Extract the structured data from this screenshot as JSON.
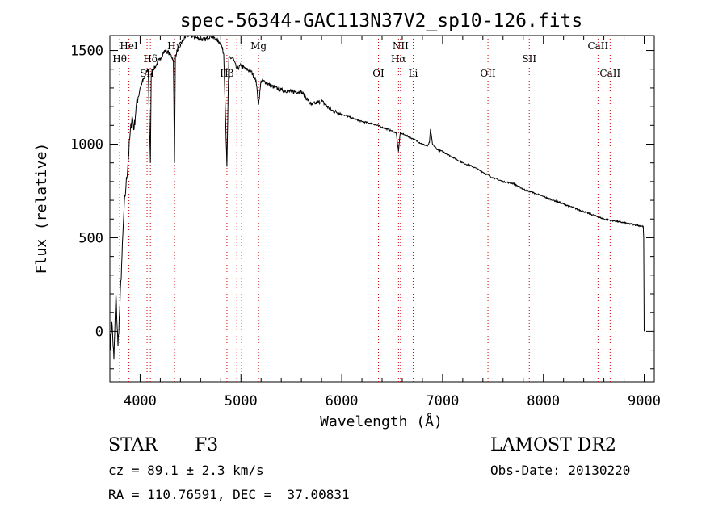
{
  "chart_data": {
    "type": "line",
    "title": "spec-56344-GAC113N37V2_sp10-126.fits",
    "xlabel": "Wavelength (Å)",
    "ylabel": "Flux (relative)",
    "xlim": [
      3700,
      9100
    ],
    "ylim": [
      -270,
      1580
    ],
    "xticks": [
      4000,
      5000,
      6000,
      7000,
      8000,
      9000
    ],
    "yticks": [
      0,
      500,
      1000,
      1500
    ],
    "grid": false,
    "series": [
      {
        "x": [
          3700,
          3720,
          3740,
          3760,
          3780,
          3800,
          3820,
          3840,
          3860,
          3880,
          3900,
          3920,
          3940,
          3960,
          3980,
          4000,
          4020,
          4040,
          4060,
          4080,
          4102,
          4110,
          4130,
          4160,
          4200,
          4250,
          4300,
          4330,
          4341,
          4350,
          4380,
          4420,
          4460,
          4500,
          4550,
          4600,
          4650,
          4700,
          4750,
          4800,
          4830,
          4861,
          4880,
          4920,
          4960,
          5000,
          5050,
          5100,
          5150,
          5175,
          5200,
          5250,
          5300,
          5400,
          5500,
          5600,
          5700,
          5800,
          5900,
          6000,
          6100,
          6200,
          6300,
          6400,
          6500,
          6540,
          6563,
          6580,
          6620,
          6700,
          6800,
          6850,
          6870,
          6880,
          6900,
          6950,
          7000,
          7100,
          7200,
          7300,
          7400,
          7500,
          7600,
          7700,
          7800,
          7900,
          8000,
          8100,
          8200,
          8300,
          8400,
          8500,
          8600,
          8700,
          8800,
          8900,
          8990,
          8995,
          9000
        ],
        "y": [
          -100,
          50,
          -150,
          200,
          -80,
          150,
          400,
          650,
          780,
          900,
          1050,
          1150,
          1080,
          1200,
          1250,
          1300,
          1330,
          1350,
          1380,
          1400,
          900,
          1380,
          1400,
          1420,
          1460,
          1500,
          1480,
          1450,
          900,
          1470,
          1520,
          1550,
          1580,
          1580,
          1570,
          1560,
          1560,
          1580,
          1560,
          1540,
          1480,
          880,
          1460,
          1460,
          1400,
          1420,
          1400,
          1390,
          1340,
          1210,
          1340,
          1330,
          1310,
          1290,
          1280,
          1280,
          1210,
          1230,
          1180,
          1160,
          1140,
          1120,
          1110,
          1090,
          1070,
          1060,
          960,
          1060,
          1050,
          1030,
          1000,
          990,
          1010,
          1080,
          1000,
          970,
          960,
          930,
          900,
          880,
          850,
          820,
          800,
          790,
          760,
          740,
          720,
          700,
          680,
          660,
          640,
          620,
          600,
          590,
          580,
          570,
          560,
          500,
          0
        ]
      }
    ],
    "line_labels": [
      {
        "label": "Hθ",
        "x": 3797,
        "row": 1
      },
      {
        "label": "HeI",
        "x": 3889,
        "row": 0
      },
      {
        "label": "Hδ",
        "x": 4102,
        "row": 1
      },
      {
        "label": "SII",
        "x": 4069,
        "row": 2
      },
      {
        "label": "Hγ",
        "x": 4341,
        "row": 0
      },
      {
        "label": "Hβ",
        "x": 4861,
        "row": 2
      },
      {
        "label": "Mg",
        "x": 5175,
        "row": 0
      },
      {
        "label": "NII",
        "x": 6583,
        "row": 0
      },
      {
        "label": "Hα",
        "x": 6563,
        "row": 1
      },
      {
        "label": "OI",
        "x": 6364,
        "row": 2
      },
      {
        "label": "Li",
        "x": 6708,
        "row": 2
      },
      {
        "label": "OII",
        "x": 7450,
        "row": 2
      },
      {
        "label": "SII",
        "x": 7860,
        "row": 1
      },
      {
        "label": "CaII",
        "x": 8542,
        "row": 0
      },
      {
        "label": "CaII",
        "x": 8662,
        "row": 2
      }
    ],
    "extra_marker_x": [
      4960,
      5007
    ]
  },
  "info": {
    "object_class": "STAR",
    "subclass": "F3",
    "survey": "LAMOST DR2",
    "cz": "cz = 89.1 ± 2.3 km/s",
    "obs_date": "Obs-Date: 20130220",
    "coords": "RA = 110.76591, DEC =  37.00831"
  },
  "colors": {
    "line": "#000000",
    "marker": "#cc0000"
  }
}
